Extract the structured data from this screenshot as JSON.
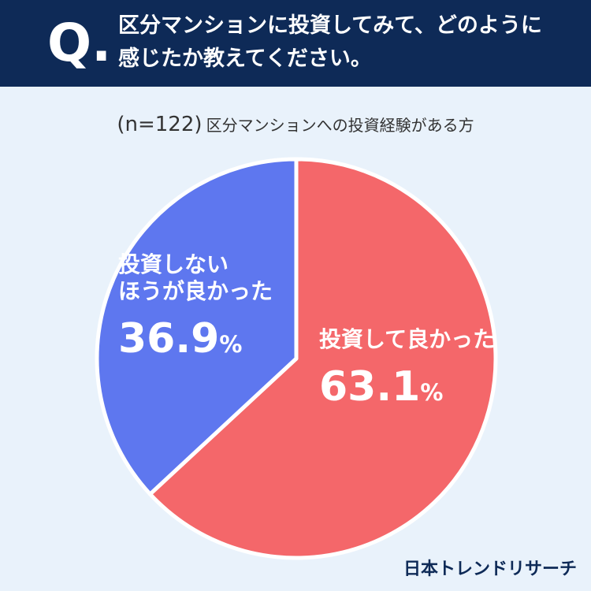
{
  "question": {
    "mark": "Q.",
    "lines": [
      "区分マンションに投資してみて、どのように",
      "感じたか教えてください。"
    ]
  },
  "sample": {
    "n": "(n=122)",
    "label": "区分マンションへの投資経験がある方"
  },
  "chart_data": {
    "type": "pie",
    "slices": [
      {
        "label": "投資して良かった",
        "value": 63.1,
        "display": "63.1",
        "unit": "%",
        "color": "#f4676a"
      },
      {
        "label": "投資しない\nほうが良かった",
        "value": 36.9,
        "display": "36.9",
        "unit": "%",
        "color": "#5e77ef"
      }
    ]
  },
  "brand": "日本トレンドリサーチ"
}
